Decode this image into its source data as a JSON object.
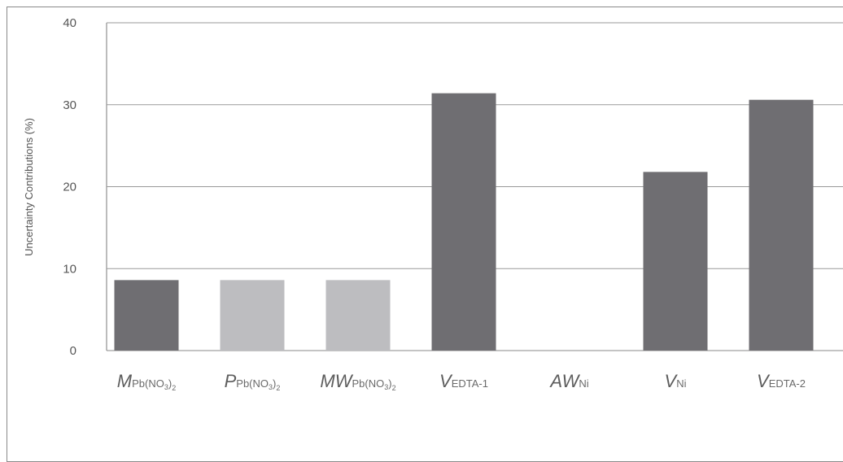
{
  "chart_data": {
    "type": "bar",
    "ylabel": "Uncertainty Contributions (%)",
    "ylim": [
      0,
      40
    ],
    "yticks": [
      0,
      10,
      20,
      30,
      40
    ],
    "grid": true,
    "categories": [
      {
        "main": "M",
        "sub": "Pb(NO",
        "sub_num": "3",
        "tail": ")",
        "tail_num": "2"
      },
      {
        "main": "P",
        "sub": "Pb(NO",
        "sub_num": "3",
        "tail": ")",
        "tail_num": "2"
      },
      {
        "main": "MW",
        "sub": "Pb(NO",
        "sub_num": "3",
        "tail": ")",
        "tail_num": "2"
      },
      {
        "main": "V",
        "sub": "EDTA-1",
        "sub_num": "",
        "tail": "",
        "tail_num": ""
      },
      {
        "main": "AW",
        "sub": "Ni",
        "sub_num": "",
        "tail": "",
        "tail_num": ""
      },
      {
        "main": "V",
        "sub": "Ni",
        "sub_num": "",
        "tail": "",
        "tail_num": ""
      },
      {
        "main": "V",
        "sub": "EDTA-2",
        "sub_num": "",
        "tail": "",
        "tail_num": ""
      }
    ],
    "values": [
      8.6,
      8.6,
      8.6,
      31.4,
      0,
      21.8,
      30.6
    ],
    "bar_colors": [
      "#6f6e72",
      "#bdbdc0",
      "#bdbdc0",
      "#6f6e72",
      "#6f6e72",
      "#6f6e72",
      "#6f6e72"
    ]
  }
}
